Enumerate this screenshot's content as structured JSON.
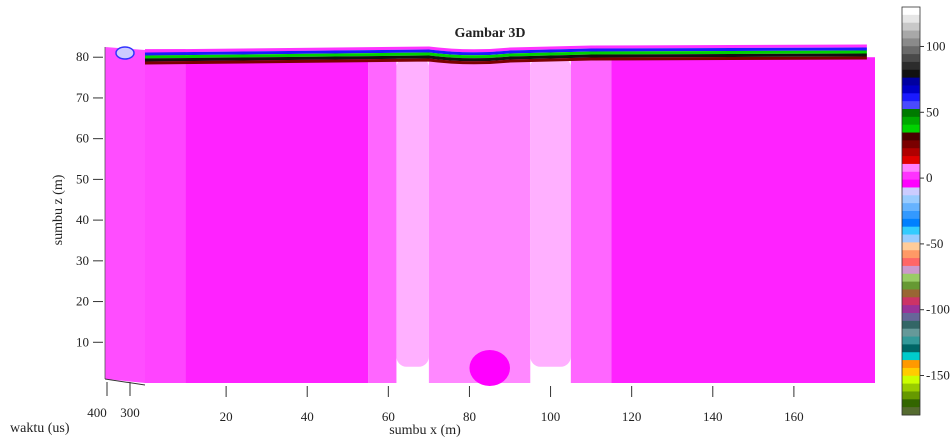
{
  "chart_data": {
    "type": "heatmap",
    "title": "Gambar 3D",
    "xlabel": "sumbu x (m)",
    "ylabel": "sumbu z (m)",
    "tlabel": "waktu (us)",
    "x_ticks": [
      20,
      40,
      60,
      80,
      100,
      120,
      140,
      160
    ],
    "x_tick_labels": [
      "20",
      "40",
      "60",
      "80",
      "100",
      "120",
      "140",
      "160"
    ],
    "z_ticks": [
      10,
      20,
      30,
      40,
      50,
      60,
      70,
      80
    ],
    "z_tick_labels": [
      "10",
      "20",
      "30",
      "40",
      "50",
      "60",
      "70",
      "80"
    ],
    "t_ticks": [
      400,
      300
    ],
    "t_tick_labels": [
      "400",
      "300"
    ],
    "xlim": [
      0,
      180
    ],
    "zlim": [
      0,
      83
    ],
    "colorbar": {
      "range": [
        -180,
        130
      ],
      "ticks": [
        100,
        50,
        0,
        -50,
        -100,
        -150
      ],
      "tick_labels": [
        "100",
        "50",
        "0",
        "-50",
        "-100",
        "-150"
      ],
      "colors": [
        "#ffffff",
        "#e6e6e6",
        "#c8c8c8",
        "#a8a8a8",
        "#8a8a8a",
        "#6a6a6a",
        "#4a4a4a",
        "#2c2c2c",
        "#111111",
        "#0000a0",
        "#0000c8",
        "#1a1aff",
        "#4a4aff",
        "#007a00",
        "#00a800",
        "#00d200",
        "#4a0000",
        "#7a0000",
        "#b00000",
        "#e00000",
        "#ff80ff",
        "#ff33ff",
        "#ff00ff",
        "#ccccff",
        "#99ccff",
        "#66b3ff",
        "#3399ff",
        "#0080ff",
        "#33ccff",
        "#99ccff",
        "#ffcc99",
        "#ff9966",
        "#ff6666",
        "#cc99cc",
        "#99cc66",
        "#669933",
        "#996633",
        "#cc3366",
        "#993399",
        "#666699",
        "#336666",
        "#669999",
        "#339999",
        "#006666",
        "#00cccc",
        "#ff9900",
        "#ffcc00",
        "#ccff00",
        "#99cc00",
        "#669900",
        "#336600",
        "#556b2f"
      ]
    },
    "regions": [
      {
        "x": [
          0,
          10
        ],
        "z": [
          0,
          82
        ],
        "value": 0,
        "color": "#ff44ff"
      },
      {
        "x": [
          10,
          55
        ],
        "z": [
          0,
          80
        ],
        "value": 2,
        "color": "#ff22ff"
      },
      {
        "x": [
          55,
          62
        ],
        "z": [
          0,
          80
        ],
        "value": 4,
        "color": "#ff66ff"
      },
      {
        "x": [
          62,
          70
        ],
        "z": [
          4,
          80
        ],
        "value": 8,
        "color": "#ffb0ff"
      },
      {
        "x": [
          70,
          95
        ],
        "z": [
          0,
          80
        ],
        "value": 6,
        "color": "#ff88ff"
      },
      {
        "x": [
          95,
          105
        ],
        "z": [
          4,
          80
        ],
        "value": 8,
        "color": "#ffb0ff"
      },
      {
        "x": [
          105,
          115
        ],
        "z": [
          0,
          80
        ],
        "value": 4,
        "color": "#ff66ff"
      },
      {
        "x": [
          115,
          180
        ],
        "z": [
          0,
          80
        ],
        "value": 2,
        "color": "#ff22ff"
      },
      {
        "x": [
          80,
          90
        ],
        "z": [
          0,
          5
        ],
        "value": 1,
        "color": "#ff00ff"
      }
    ],
    "surface_bands": [
      "#ff33ff",
      "#1a1aff",
      "#00d200",
      "#111111",
      "#7a0000"
    ]
  }
}
